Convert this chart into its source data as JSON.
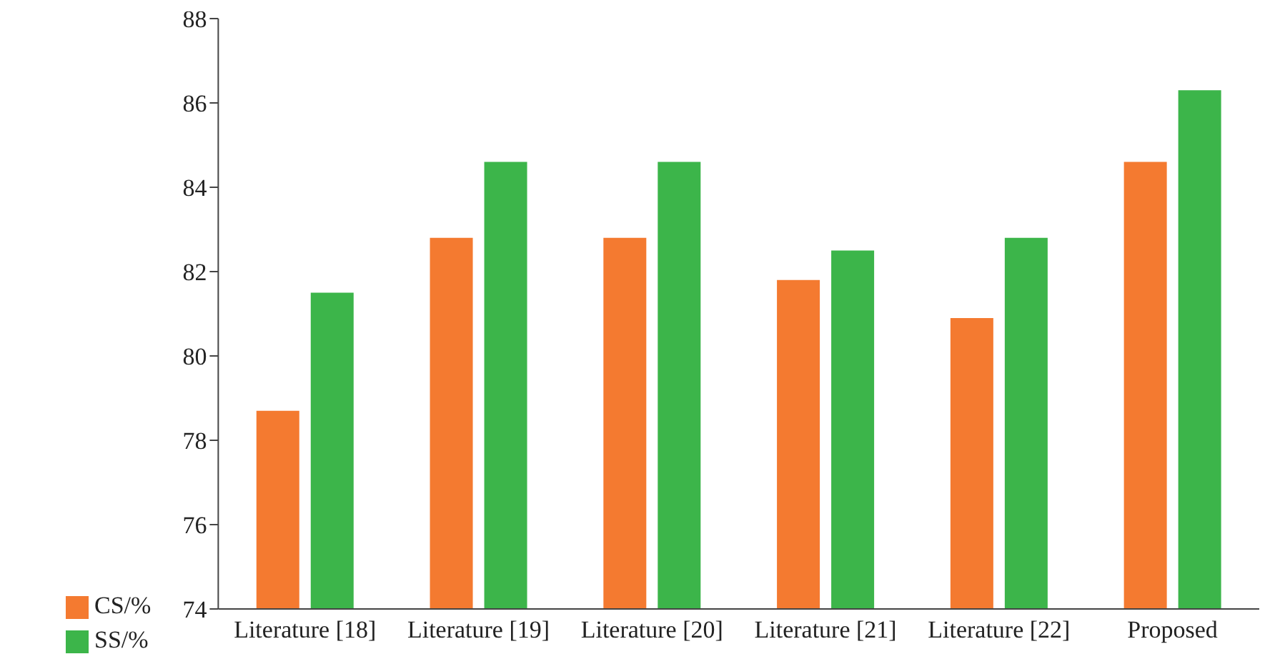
{
  "chart_data": {
    "type": "bar",
    "categories": [
      "Literature [18]",
      "Literature [19]",
      "Literature [20]",
      "Literature [21]",
      "Literature [22]",
      "Proposed"
    ],
    "series": [
      {
        "name": "CS/%",
        "color": "#f47a30",
        "values": [
          78.7,
          82.8,
          82.8,
          81.8,
          80.9,
          84.6
        ]
      },
      {
        "name": "SS/%",
        "color": "#3cb54a",
        "values": [
          81.5,
          84.6,
          84.6,
          82.5,
          82.8,
          86.3
        ]
      }
    ],
    "ylim": [
      74,
      88
    ],
    "yticks": [
      74,
      76,
      78,
      80,
      82,
      84,
      86,
      88
    ],
    "grid": false,
    "legend": "bottom left"
  }
}
